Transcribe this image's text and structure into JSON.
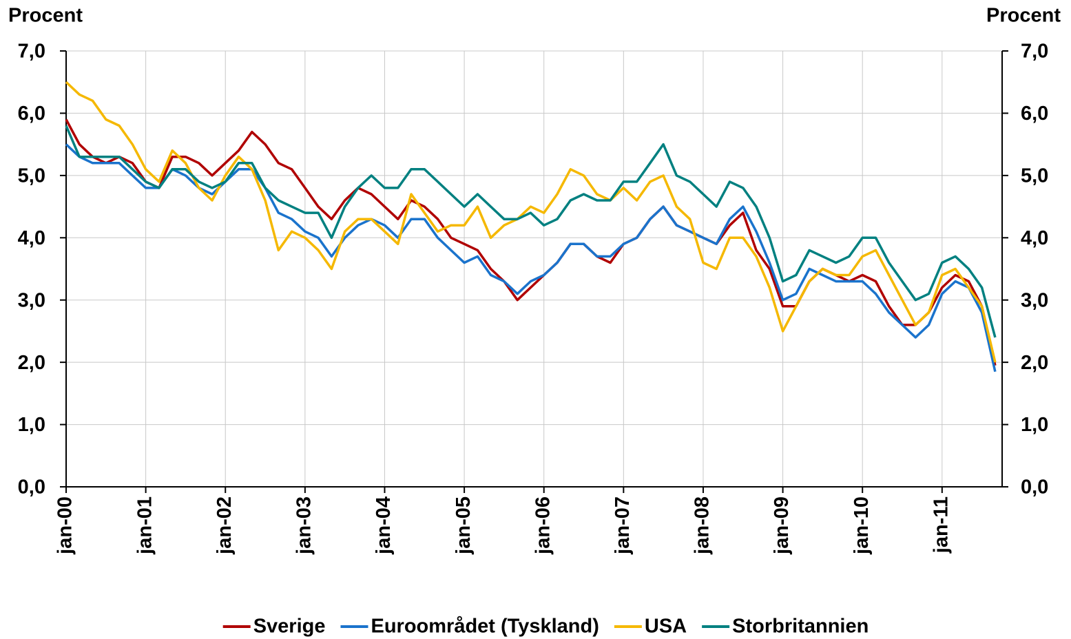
{
  "chart_data": {
    "type": "line",
    "y_label": "Procent",
    "y2_label": "Procent",
    "categories": [
      "jan-00",
      null,
      null,
      null,
      null,
      null,
      "jan-01",
      null,
      null,
      null,
      null,
      null,
      "jan-02",
      null,
      null,
      null,
      null,
      null,
      "jan-03",
      null,
      null,
      null,
      null,
      null,
      "jan-04",
      null,
      null,
      null,
      null,
      null,
      "jan-05",
      null,
      null,
      null,
      null,
      null,
      "jan-06",
      null,
      null,
      null,
      null,
      null,
      "jan-07",
      null,
      null,
      null,
      null,
      null,
      "jan-08",
      null,
      null,
      null,
      null,
      null,
      "jan-09",
      null,
      null,
      null,
      null,
      null,
      "jan-10",
      null,
      null,
      null,
      null,
      null,
      "jan-11",
      null,
      null,
      null,
      null
    ],
    "series": [
      {
        "name": "Sverige",
        "color": "#b00000",
        "values": [
          5.9,
          5.5,
          5.3,
          5.2,
          5.3,
          5.2,
          4.9,
          4.8,
          5.3,
          5.3,
          5.2,
          5.0,
          5.2,
          5.4,
          5.7,
          5.5,
          5.2,
          5.1,
          4.8,
          4.5,
          4.3,
          4.6,
          4.8,
          4.7,
          4.5,
          4.3,
          4.6,
          4.5,
          4.3,
          4.0,
          3.9,
          3.8,
          3.5,
          3.3,
          3.0,
          3.2,
          3.4,
          3.6,
          3.9,
          3.9,
          3.7,
          3.6,
          3.9,
          4.0,
          4.3,
          4.5,
          4.2,
          4.1,
          4.0,
          3.9,
          4.2,
          4.4,
          3.8,
          3.5,
          2.9,
          2.9,
          3.3,
          3.5,
          3.4,
          3.3,
          3.4,
          3.3,
          2.9,
          2.6,
          2.6,
          2.8,
          3.2,
          3.4,
          3.3,
          2.9,
          1.95
        ]
      },
      {
        "name": "Euroområdet (Tyskland)",
        "color": "#1a73cc",
        "values": [
          5.5,
          5.3,
          5.2,
          5.2,
          5.2,
          5.0,
          4.8,
          4.8,
          5.1,
          5.0,
          4.8,
          4.7,
          4.9,
          5.1,
          5.1,
          4.8,
          4.4,
          4.3,
          4.1,
          4.0,
          3.7,
          4.0,
          4.2,
          4.3,
          4.2,
          4.0,
          4.3,
          4.3,
          4.0,
          3.8,
          3.6,
          3.7,
          3.4,
          3.3,
          3.1,
          3.3,
          3.4,
          3.6,
          3.9,
          3.9,
          3.7,
          3.7,
          3.9,
          4.0,
          4.3,
          4.5,
          4.2,
          4.1,
          4.0,
          3.9,
          4.3,
          4.5,
          4.1,
          3.6,
          3.0,
          3.1,
          3.5,
          3.4,
          3.3,
          3.3,
          3.3,
          3.1,
          2.8,
          2.6,
          2.4,
          2.6,
          3.1,
          3.3,
          3.2,
          2.8,
          1.85
        ]
      },
      {
        "name": "USA",
        "color": "#f5b800",
        "values": [
          6.5,
          6.3,
          6.2,
          5.9,
          5.8,
          5.5,
          5.1,
          4.9,
          5.4,
          5.2,
          4.8,
          4.6,
          5.0,
          5.3,
          5.1,
          4.6,
          3.8,
          4.1,
          4.0,
          3.8,
          3.5,
          4.1,
          4.3,
          4.3,
          4.1,
          3.9,
          4.7,
          4.4,
          4.1,
          4.2,
          4.2,
          4.5,
          4.0,
          4.2,
          4.3,
          4.5,
          4.4,
          4.7,
          5.1,
          5.0,
          4.7,
          4.6,
          4.8,
          4.6,
          4.9,
          5.0,
          4.5,
          4.3,
          3.6,
          3.5,
          4.0,
          4.0,
          3.7,
          3.2,
          2.5,
          2.9,
          3.3,
          3.5,
          3.4,
          3.4,
          3.7,
          3.8,
          3.4,
          3.0,
          2.6,
          2.8,
          3.4,
          3.5,
          3.2,
          2.9,
          2.0
        ]
      },
      {
        "name": "Storbritannien",
        "color": "#008080",
        "values": [
          5.8,
          5.3,
          5.3,
          5.3,
          5.3,
          5.1,
          4.9,
          4.8,
          5.1,
          5.1,
          4.9,
          4.8,
          4.9,
          5.2,
          5.2,
          4.8,
          4.6,
          4.5,
          4.4,
          4.4,
          4.0,
          4.5,
          4.8,
          5.0,
          4.8,
          4.8,
          5.1,
          5.1,
          4.9,
          4.7,
          4.5,
          4.7,
          4.5,
          4.3,
          4.3,
          4.4,
          4.2,
          4.3,
          4.6,
          4.7,
          4.6,
          4.6,
          4.9,
          4.9,
          5.2,
          5.5,
          5.0,
          4.9,
          4.7,
          4.5,
          4.9,
          4.8,
          4.5,
          4.0,
          3.3,
          3.4,
          3.8,
          3.7,
          3.6,
          3.7,
          4.0,
          4.0,
          3.6,
          3.3,
          3.0,
          3.1,
          3.6,
          3.7,
          3.5,
          3.2,
          2.4
        ]
      }
    ],
    "ylim": [
      0,
      7
    ],
    "yticks": [
      {
        "value": 0,
        "label": "0,0"
      },
      {
        "value": 1,
        "label": "1,0"
      },
      {
        "value": 2,
        "label": "2,0"
      },
      {
        "value": 3,
        "label": "3,0"
      },
      {
        "value": 4,
        "label": "4,0"
      },
      {
        "value": 5,
        "label": "5,0"
      },
      {
        "value": 6,
        "label": "6,0"
      },
      {
        "value": 7,
        "label": "7,0"
      }
    ],
    "y2lim": [
      0,
      7
    ],
    "y2ticks": [
      {
        "value": 0,
        "label": "0,0"
      },
      {
        "value": 1,
        "label": "1,0"
      },
      {
        "value": 2,
        "label": "2,0"
      },
      {
        "value": 3,
        "label": "3,0"
      },
      {
        "value": 4,
        "label": "4,0"
      },
      {
        "value": 5,
        "label": "5,0"
      },
      {
        "value": 6,
        "label": "6,0"
      },
      {
        "value": 7,
        "label": "7,0"
      }
    ],
    "grid": true,
    "legend": "bottom"
  }
}
